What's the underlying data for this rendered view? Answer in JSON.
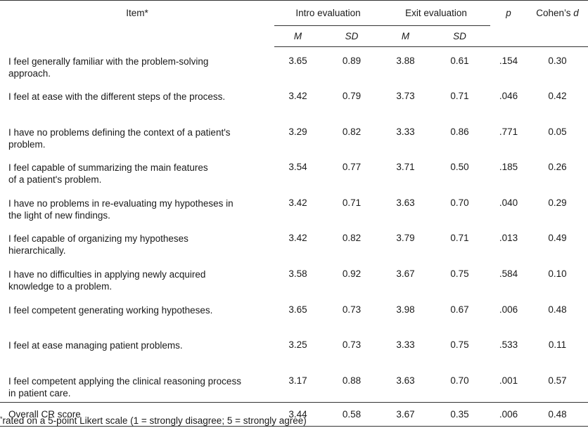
{
  "table": {
    "headers": {
      "item": "Item*",
      "intro": "Intro evaluation",
      "exit": "Exit evaluation",
      "p": "p",
      "cohens_prefix": "Cohen’s ",
      "cohens_d": "d",
      "intro_m": "M",
      "intro_sd": "SD",
      "exit_m": "M",
      "exit_sd": "SD"
    },
    "rows": [
      {
        "item_l1": "I feel generally familiar with the problem-solving",
        "item_l2": "approach.",
        "intro_m": "3.65",
        "intro_sd": "0.89",
        "exit_m": "3.88",
        "exit_sd": "0.61",
        "p": ".154",
        "d": "0.30"
      },
      {
        "item_l1": "I feel at ease with the different steps of the process.",
        "item_l2": "",
        "intro_m": "3.42",
        "intro_sd": "0.79",
        "exit_m": "3.73",
        "exit_sd": "0.71",
        "p": ".046",
        "d": "0.42"
      },
      {
        "item_l1": "I have no problems defining the context of a patient's",
        "item_l2": "problem.",
        "intro_m": "3.29",
        "intro_sd": "0.82",
        "exit_m": "3.33",
        "exit_sd": "0.86",
        "p": ".771",
        "d": "0.05"
      },
      {
        "item_l1": "I feel capable of summarizing the main features",
        "item_l2": "of a patient's problem.",
        "intro_m": "3.54",
        "intro_sd": "0.77",
        "exit_m": "3.71",
        "exit_sd": "0.50",
        "p": ".185",
        "d": "0.26"
      },
      {
        "item_l1": "I have no problems in re-evaluating my hypotheses in",
        "item_l2": "the light of new findings.",
        "intro_m": "3.42",
        "intro_sd": "0.71",
        "exit_m": "3.63",
        "exit_sd": "0.70",
        "p": ".040",
        "d": "0.29"
      },
      {
        "item_l1": "I feel capable of organizing my hypotheses",
        "item_l2": "hierarchically.",
        "intro_m": "3.42",
        "intro_sd": "0.82",
        "exit_m": "3.79",
        "exit_sd": "0.71",
        "p": ".013",
        "d": "0.49"
      },
      {
        "item_l1": "I have no difficulties in applying newly acquired",
        "item_l2": "knowledge to a problem.",
        "intro_m": "3.58",
        "intro_sd": "0.92",
        "exit_m": "3.67",
        "exit_sd": "0.75",
        "p": ".584",
        "d": "0.10"
      },
      {
        "item_l1": "I feel competent generating working hypotheses.",
        "item_l2": "",
        "intro_m": "3.65",
        "intro_sd": "0.73",
        "exit_m": "3.98",
        "exit_sd": "0.67",
        "p": ".006",
        "d": "0.48"
      },
      {
        "item_l1": "I feel at ease managing patient problems.",
        "item_l2": "",
        "intro_m": "3.25",
        "intro_sd": "0.73",
        "exit_m": "3.33",
        "exit_sd": "0.75",
        "p": ".533",
        "d": "0.11"
      },
      {
        "item_l1": "I feel competent applying the clinical reasoning process",
        "item_l2": "in patient care.",
        "intro_m": "3.17",
        "intro_sd": "0.88",
        "exit_m": "3.63",
        "exit_sd": "0.70",
        "p": ".001",
        "d": "0.57"
      }
    ],
    "overall": {
      "item": "Overall CR score",
      "intro_m": "3.44",
      "intro_sd": "0.58",
      "exit_m": "3.67",
      "exit_sd": "0.35",
      "p": ".006",
      "d": "0.48"
    }
  },
  "footnote": {
    "marker": "*",
    "text": "rated on a 5-point Likert scale (1 = strongly disagree; 5 = strongly agree)"
  }
}
